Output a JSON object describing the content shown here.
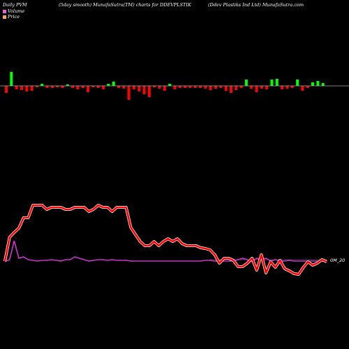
{
  "header": {
    "left": "Daily PVM",
    "middle": "(5day smooth) MunafaSutra(TM) charts for DDEVPLSTIK",
    "right": "(Ddev   Plastiks Ind Ltd) MunafaSutra.com"
  },
  "legend": {
    "volume_label": "Volume",
    "price_label": "Price",
    "volume_color": "#e060e0",
    "price_color": "#f4a460"
  },
  "colors": {
    "up_bar": "#00ff00",
    "down_bar": "#ff0000",
    "price_line": "#ff0000",
    "volume_line": "#cc33cc",
    "baseline": "#aaaaaa"
  },
  "chart_data": {
    "type": "line",
    "y_tick_label": "0M_20",
    "volume_bars": [
      {
        "dir": "down",
        "v": -10
      },
      {
        "dir": "up",
        "v": 20
      },
      {
        "dir": "down",
        "v": -5
      },
      {
        "dir": "down",
        "v": -6
      },
      {
        "dir": "down",
        "v": -8
      },
      {
        "dir": "down",
        "v": -7
      },
      {
        "dir": "down",
        "v": -2
      },
      {
        "dir": "up",
        "v": 3
      },
      {
        "dir": "down",
        "v": -3
      },
      {
        "dir": "down",
        "v": -3
      },
      {
        "dir": "down",
        "v": -2
      },
      {
        "dir": "down",
        "v": -3
      },
      {
        "dir": "up",
        "v": 2
      },
      {
        "dir": "down",
        "v": -3
      },
      {
        "dir": "down",
        "v": -5
      },
      {
        "dir": "down",
        "v": -3
      },
      {
        "dir": "down",
        "v": -9
      },
      {
        "dir": "down",
        "v": -2
      },
      {
        "dir": "down",
        "v": -3
      },
      {
        "dir": "down",
        "v": -5
      },
      {
        "dir": "up",
        "v": 3
      },
      {
        "dir": "up",
        "v": 6
      },
      {
        "dir": "down",
        "v": -3
      },
      {
        "dir": "down",
        "v": -4
      },
      {
        "dir": "down",
        "v": -20
      },
      {
        "dir": "down",
        "v": -5
      },
      {
        "dir": "down",
        "v": -8
      },
      {
        "dir": "down",
        "v": -12
      },
      {
        "dir": "down",
        "v": -16
      },
      {
        "dir": "down",
        "v": -2
      },
      {
        "dir": "down",
        "v": -4
      },
      {
        "dir": "down",
        "v": -7
      },
      {
        "dir": "up",
        "v": 3
      },
      {
        "dir": "down",
        "v": -5
      },
      {
        "dir": "down",
        "v": -3
      },
      {
        "dir": "down",
        "v": -3
      },
      {
        "dir": "down",
        "v": -3
      },
      {
        "dir": "down",
        "v": -3
      },
      {
        "dir": "down",
        "v": -3
      },
      {
        "dir": "down",
        "v": -4
      },
      {
        "dir": "down",
        "v": -6
      },
      {
        "dir": "down",
        "v": -4
      },
      {
        "dir": "down",
        "v": -3
      },
      {
        "dir": "down",
        "v": -7
      },
      {
        "dir": "down",
        "v": -10
      },
      {
        "dir": "down",
        "v": -6
      },
      {
        "dir": "down",
        "v": -3
      },
      {
        "dir": "up",
        "v": 9
      },
      {
        "dir": "down",
        "v": -4
      },
      {
        "dir": "down",
        "v": -9
      },
      {
        "dir": "down",
        "v": -4
      },
      {
        "dir": "down",
        "v": -5
      },
      {
        "dir": "up",
        "v": 9
      },
      {
        "dir": "up",
        "v": 10
      },
      {
        "dir": "down",
        "v": -5
      },
      {
        "dir": "down",
        "v": -4
      },
      {
        "dir": "down",
        "v": -3
      },
      {
        "dir": "up",
        "v": 9
      },
      {
        "dir": "down",
        "v": -7
      },
      {
        "dir": "down",
        "v": -3
      },
      {
        "dir": "up",
        "v": 5
      },
      {
        "dir": "up",
        "v": 7
      },
      {
        "dir": "up",
        "v": 4
      }
    ],
    "price": [
      374,
      340,
      333,
      327,
      312,
      312,
      294,
      294,
      294,
      300,
      297,
      297,
      297,
      300,
      300,
      297,
      297,
      297,
      303,
      300,
      294,
      297,
      297,
      303,
      297,
      297,
      297,
      326,
      336,
      346,
      352,
      352,
      346,
      352,
      346,
      342,
      346,
      342,
      349,
      352,
      352,
      352,
      355,
      356,
      358,
      365,
      377,
      370,
      370,
      373,
      382,
      382,
      377,
      370,
      387,
      365,
      391,
      375,
      383,
      373,
      385,
      388,
      392,
      393,
      383,
      375,
      380,
      377,
      372,
      375
    ],
    "volume": [
      375,
      372,
      345,
      370,
      368,
      372,
      373,
      374,
      373,
      373,
      372,
      373,
      374,
      372,
      372,
      368,
      370,
      372,
      374,
      373,
      372,
      372,
      373,
      372,
      373,
      373,
      373,
      374,
      374,
      374,
      374,
      374,
      374,
      374,
      374,
      374,
      374,
      374,
      374,
      374,
      374,
      374,
      374,
      373,
      373,
      374,
      374,
      374,
      374,
      374,
      372,
      370,
      372,
      375,
      370,
      372,
      370,
      374,
      372,
      374,
      374,
      373,
      374,
      374,
      374,
      374,
      374,
      374,
      374,
      374
    ]
  }
}
